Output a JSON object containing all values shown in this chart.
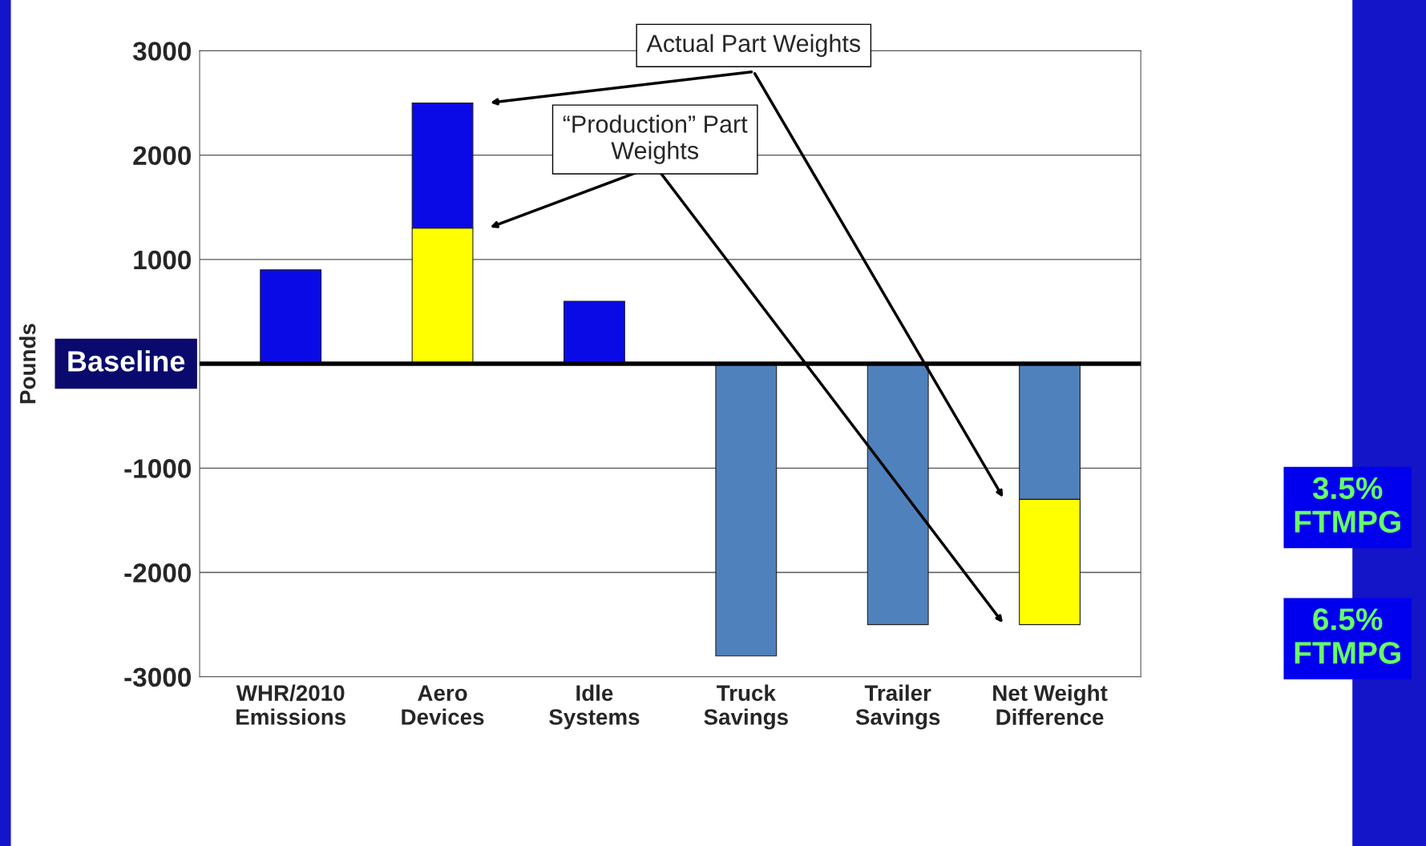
{
  "chart_data": {
    "type": "bar",
    "stacked": true,
    "ylabel": "Pounds",
    "categories": [
      "WHR/2010\nEmissions",
      "Aero\nDevices",
      "Idle\nSystems",
      "Truck\nSavings",
      "Trailer\nSavings",
      "Net Weight\nDifference"
    ],
    "series": [
      {
        "colors": [
          "#0a0ae6",
          "#ffff00",
          "#0a0ae6",
          "#4f81bd",
          "#4f81bd",
          "#4f81bd"
        ],
        "values": [
          900,
          1300,
          600,
          -2800,
          -2500,
          -1300
        ]
      },
      {
        "colors": [
          "#0a0ae6",
          "#0a0ae6",
          "#0a0ae6",
          "#4f81bd",
          "#4f81bd",
          "#ffff00"
        ],
        "values": [
          null,
          1200,
          null,
          null,
          null,
          -1200
        ]
      }
    ],
    "ylim": [
      -3000,
      3000
    ],
    "yticks": [
      -3000,
      -2000,
      -1000,
      {
        "value": 0,
        "label": null
      },
      1000,
      2000,
      3000
    ],
    "grid": "y",
    "ref_lines": [
      {
        "axis": "y",
        "value": 0,
        "label": "Baseline",
        "color": "#000000"
      }
    ],
    "annotations": [
      "Actual Part Weights",
      "“Production” Part\nWeights",
      "3.5%\nFTMPG",
      "6.5%\nFTMPG"
    ]
  }
}
